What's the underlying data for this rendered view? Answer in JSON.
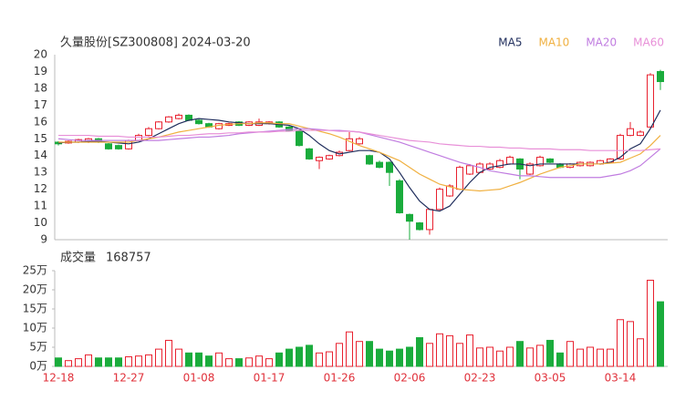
{
  "chart_data": [
    {
      "type": "candlestick",
      "title": "久量股份[SZ300808] 2024-03-20",
      "categories": [
        "12-18",
        null,
        null,
        null,
        null,
        null,
        null,
        "12-27",
        null,
        null,
        null,
        null,
        null,
        null,
        "01-08",
        null,
        null,
        null,
        null,
        null,
        null,
        "01-17",
        null,
        null,
        null,
        null,
        null,
        null,
        "01-26",
        null,
        null,
        null,
        null,
        null,
        null,
        "02-06",
        null,
        null,
        null,
        null,
        null,
        null,
        "02-23",
        null,
        null,
        null,
        null,
        null,
        null,
        "03-05",
        null,
        null,
        null,
        null,
        null,
        null,
        "03-14",
        null,
        null,
        null,
        null
      ],
      "open": [
        14.8,
        14.75,
        14.8,
        14.8,
        15.0,
        14.7,
        14.6,
        14.4,
        14.9,
        15.2,
        15.6,
        16.0,
        16.2,
        16.4,
        16.1,
        15.9,
        15.6,
        15.8,
        16.0,
        15.8,
        15.8,
        15.9,
        16.0,
        15.7,
        15.5,
        14.4,
        13.7,
        13.8,
        14.0,
        14.3,
        14.7,
        14.0,
        13.6,
        13.6,
        12.5,
        10.5,
        10.0,
        9.6,
        10.8,
        11.6,
        12.0,
        12.9,
        13.0,
        13.2,
        13.3,
        13.5,
        13.8,
        12.9,
        13.4,
        13.8,
        13.5,
        13.3,
        13.4,
        13.4,
        13.5,
        13.6,
        13.8,
        15.2,
        15.2,
        15.7,
        19.0
      ],
      "high": [
        14.85,
        14.9,
        15.0,
        15.05,
        15.05,
        14.75,
        14.65,
        14.95,
        15.3,
        15.7,
        16.05,
        16.35,
        16.5,
        16.45,
        16.15,
        15.95,
        15.95,
        15.95,
        16.05,
        16.05,
        16.2,
        16.05,
        16.05,
        15.75,
        15.55,
        14.45,
        13.95,
        14.05,
        14.3,
        15.4,
        15.1,
        14.05,
        13.7,
        13.65,
        12.6,
        10.55,
        10.05,
        10.85,
        12.1,
        12.3,
        13.4,
        13.5,
        13.6,
        13.6,
        13.8,
        14.0,
        13.85,
        13.6,
        14.0,
        13.85,
        13.55,
        13.55,
        13.65,
        13.65,
        13.75,
        13.85,
        15.3,
        16.0,
        15.5,
        18.9,
        19.1
      ],
      "low": [
        14.6,
        14.7,
        14.75,
        14.75,
        14.75,
        14.35,
        14.35,
        14.35,
        14.85,
        15.15,
        15.55,
        15.95,
        16.15,
        16.05,
        15.85,
        15.65,
        15.55,
        15.75,
        15.75,
        15.75,
        15.75,
        15.85,
        15.65,
        15.45,
        14.55,
        13.75,
        13.2,
        13.75,
        13.95,
        14.25,
        14.65,
        13.45,
        13.25,
        12.2,
        10.55,
        9.0,
        9.55,
        9.3,
        10.75,
        11.55,
        11.95,
        12.85,
        12.95,
        13.15,
        13.25,
        13.45,
        12.6,
        12.85,
        13.35,
        13.55,
        13.25,
        13.25,
        13.35,
        13.35,
        13.45,
        13.55,
        13.75,
        15.15,
        15.15,
        15.65,
        17.9
      ],
      "close": [
        14.7,
        14.85,
        14.95,
        15.0,
        14.8,
        14.4,
        14.4,
        14.9,
        15.2,
        15.6,
        16.0,
        16.3,
        16.4,
        16.1,
        15.9,
        15.7,
        15.9,
        15.9,
        15.8,
        16.0,
        16.0,
        16.0,
        15.7,
        15.5,
        14.6,
        13.8,
        13.9,
        14.0,
        14.2,
        15.0,
        15.0,
        13.5,
        13.3,
        13.0,
        10.6,
        10.1,
        9.6,
        10.8,
        12.0,
        12.2,
        13.3,
        13.4,
        13.5,
        13.5,
        13.7,
        13.9,
        13.2,
        13.5,
        13.9,
        13.6,
        13.3,
        13.5,
        13.6,
        13.6,
        13.7,
        13.8,
        15.2,
        15.6,
        15.4,
        18.8,
        18.4
      ],
      "up_color": "#e8202e",
      "down_color": "#1aac3c",
      "series": [
        {
          "name": "MA5",
          "color": "#1f2d5c",
          "values": [
            14.75,
            14.8,
            14.8,
            14.85,
            14.85,
            14.8,
            14.75,
            14.7,
            14.8,
            15.0,
            15.3,
            15.6,
            15.9,
            16.1,
            16.2,
            16.15,
            16.1,
            16.0,
            15.95,
            15.9,
            15.9,
            15.9,
            15.85,
            15.8,
            15.6,
            15.2,
            14.7,
            14.3,
            14.1,
            14.2,
            14.3,
            14.3,
            14.2,
            13.8,
            13.0,
            12.1,
            11.3,
            10.8,
            10.7,
            11.0,
            11.7,
            12.4,
            13.0,
            13.3,
            13.4,
            13.5,
            13.5,
            13.4,
            13.5,
            13.5,
            13.5,
            13.5,
            13.5,
            13.5,
            13.5,
            13.6,
            13.9,
            14.4,
            14.7,
            15.6,
            16.7
          ]
        },
        {
          "name": "MA10",
          "color": "#f0b040",
          "values": [
            14.8,
            14.8,
            14.8,
            14.8,
            14.8,
            14.8,
            14.8,
            14.8,
            14.9,
            15.0,
            15.1,
            15.25,
            15.4,
            15.5,
            15.6,
            15.7,
            15.8,
            15.85,
            15.9,
            15.9,
            15.95,
            15.95,
            15.9,
            15.9,
            15.75,
            15.6,
            15.45,
            15.3,
            15.1,
            14.85,
            14.6,
            14.4,
            14.2,
            13.95,
            13.7,
            13.3,
            12.9,
            12.6,
            12.3,
            12.15,
            12.0,
            11.95,
            11.9,
            11.95,
            12.0,
            12.2,
            12.4,
            12.65,
            12.9,
            13.1,
            13.3,
            13.4,
            13.5,
            13.5,
            13.5,
            13.55,
            13.6,
            13.85,
            14.1,
            14.6,
            15.2
          ]
        },
        {
          "name": "MA20",
          "color": "#c07ce0",
          "values": [
            15.0,
            14.95,
            14.9,
            14.9,
            14.9,
            14.9,
            14.9,
            14.9,
            14.9,
            14.9,
            14.9,
            14.95,
            15.0,
            15.05,
            15.1,
            15.1,
            15.15,
            15.2,
            15.3,
            15.35,
            15.4,
            15.45,
            15.5,
            15.55,
            15.6,
            15.6,
            15.55,
            15.5,
            15.5,
            15.45,
            15.4,
            15.25,
            15.1,
            14.95,
            14.8,
            14.6,
            14.4,
            14.2,
            14.0,
            13.8,
            13.6,
            13.45,
            13.3,
            13.1,
            13.0,
            12.9,
            12.8,
            12.8,
            12.75,
            12.7,
            12.7,
            12.7,
            12.7,
            12.7,
            12.7,
            12.8,
            12.9,
            13.1,
            13.4,
            13.9,
            14.4
          ]
        },
        {
          "name": "MA60",
          "color": "#e890d8",
          "values": [
            15.2,
            15.2,
            15.2,
            15.2,
            15.15,
            15.15,
            15.15,
            15.1,
            15.1,
            15.1,
            15.1,
            15.15,
            15.2,
            15.2,
            15.25,
            15.3,
            15.3,
            15.35,
            15.35,
            15.4,
            15.4,
            15.4,
            15.45,
            15.45,
            15.5,
            15.5,
            15.5,
            15.5,
            15.45,
            15.45,
            15.4,
            15.3,
            15.2,
            15.1,
            15.0,
            14.9,
            14.85,
            14.8,
            14.7,
            14.65,
            14.6,
            14.55,
            14.55,
            14.5,
            14.5,
            14.45,
            14.45,
            14.4,
            14.4,
            14.4,
            14.35,
            14.35,
            14.35,
            14.3,
            14.3,
            14.3,
            14.3,
            14.3,
            14.3,
            14.35,
            14.4
          ]
        }
      ],
      "ylim": [
        9,
        20
      ],
      "yticks": [
        9,
        10,
        11,
        12,
        13,
        14,
        15,
        16,
        17,
        18,
        19,
        20
      ]
    },
    {
      "type": "bar",
      "title": "成交量",
      "last_value": 168757,
      "values": [
        2.2,
        1.5,
        2,
        3,
        2.2,
        2.2,
        2.2,
        2.5,
        2.7,
        3,
        4.5,
        6.8,
        4.5,
        3.5,
        3.5,
        2.7,
        3.5,
        2,
        2,
        2.2,
        2.7,
        2,
        3.5,
        4.5,
        5,
        5.5,
        3.5,
        3.8,
        6,
        9,
        6.5,
        6.5,
        4.5,
        4,
        4.5,
        5,
        7.5,
        6,
        8.5,
        8,
        6,
        8.2,
        4.8,
        5,
        4,
        5,
        6.5,
        4.8,
        5.5,
        6.8,
        3.5,
        6.5,
        4.5,
        5,
        4.5,
        4.5,
        12.2,
        11.7,
        7.2,
        22.5,
        16.8757
      ],
      "ylim": [
        0,
        25
      ],
      "yticks": [
        {
          "value": 0,
          "label": "0万"
        },
        {
          "value": 5,
          "label": "5万"
        },
        {
          "value": 10,
          "label": "10万"
        },
        {
          "value": 15,
          "label": "15万"
        },
        {
          "value": 20,
          "label": "20万"
        },
        {
          "value": 25,
          "label": "25万"
        }
      ]
    }
  ]
}
